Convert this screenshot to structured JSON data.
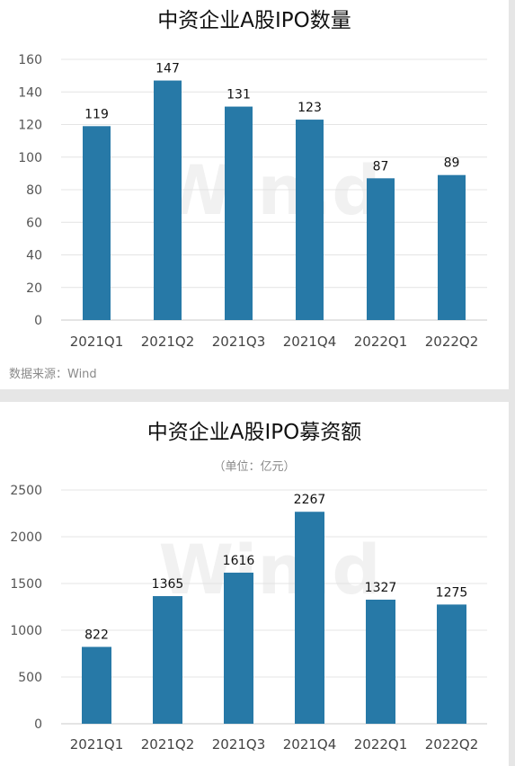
{
  "chart_data": [
    {
      "type": "bar",
      "title": "中资企业A股IPO数量",
      "subtitle": "",
      "categories": [
        "2021Q1",
        "2021Q2",
        "2021Q3",
        "2021Q4",
        "2022Q1",
        "2022Q2"
      ],
      "values": [
        119,
        147,
        131,
        123,
        87,
        89
      ],
      "ylim": [
        0,
        160
      ],
      "yticks": [
        0,
        20,
        40,
        60,
        80,
        100,
        120,
        140,
        160
      ],
      "grid": true,
      "bar_color": "#2779a7",
      "source": "数据来源：Wind",
      "watermark": "Win.d"
    },
    {
      "type": "bar",
      "title": "中资企业A股IPO募资额",
      "subtitle": "（单位：亿元）",
      "categories": [
        "2021Q1",
        "2021Q2",
        "2021Q3",
        "2021Q4",
        "2022Q1",
        "2022Q2"
      ],
      "values": [
        822,
        1365,
        1616,
        2267,
        1327,
        1275
      ],
      "ylim": [
        0,
        2500
      ],
      "yticks": [
        0,
        500,
        1000,
        1500,
        2000,
        2500
      ],
      "grid": true,
      "bar_color": "#2779a7",
      "watermark": "Win.d"
    }
  ]
}
